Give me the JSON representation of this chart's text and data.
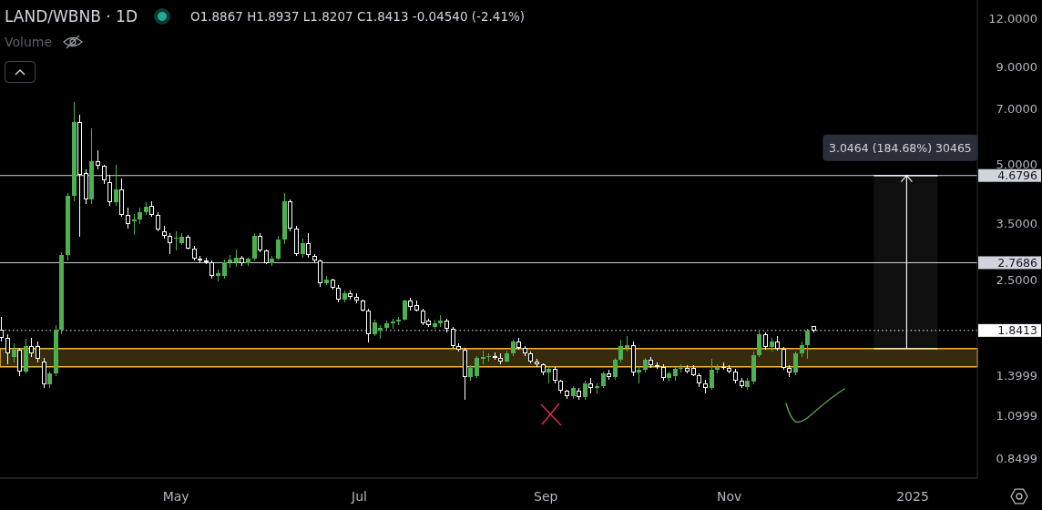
{
  "chart_data": {
    "type": "candlestick",
    "title": "LAND/WBNB · 1D",
    "annotations": [
      "O1.8867 H1.8937 L1.8207 C1.8413 -0.04540 (-2.41%)",
      "Volume",
      {
        "text": "3.0464 (184.68%) 30465",
        "x": "2024-12-30",
        "y": 4.6796
      }
    ],
    "x": [
      "2024-03-04",
      "2024-03-06",
      "2024-03-08",
      "2024-03-10",
      "2024-03-12",
      "2024-03-14",
      "2024-03-16",
      "2024-03-18",
      "2024-03-20",
      "2024-03-22",
      "2024-03-24",
      "2024-03-26",
      "2024-03-28",
      "2024-03-30",
      "2024-04-01",
      "2024-04-03",
      "2024-04-05",
      "2024-04-07",
      "2024-04-09",
      "2024-04-11",
      "2024-04-13",
      "2024-04-15",
      "2024-04-17",
      "2024-04-19",
      "2024-04-21",
      "2024-04-23",
      "2024-04-25",
      "2024-04-27",
      "2024-04-29",
      "2024-05-01",
      "2024-05-03",
      "2024-05-05",
      "2024-05-07",
      "2024-05-09",
      "2024-05-11",
      "2024-05-13",
      "2024-05-15",
      "2024-05-17",
      "2024-05-19",
      "2024-05-21",
      "2024-05-23",
      "2024-05-25",
      "2024-05-27",
      "2024-05-29",
      "2024-05-31",
      "2024-06-02",
      "2024-06-04",
      "2024-06-06",
      "2024-06-08",
      "2024-06-10",
      "2024-06-12",
      "2024-06-14",
      "2024-06-16",
      "2024-06-18",
      "2024-06-20",
      "2024-06-22",
      "2024-06-24",
      "2024-06-26",
      "2024-06-28",
      "2024-06-30",
      "2024-07-02",
      "2024-07-04",
      "2024-07-06",
      "2024-07-08",
      "2024-07-10",
      "2024-07-12",
      "2024-07-14",
      "2024-07-16",
      "2024-07-18",
      "2024-07-20",
      "2024-07-22",
      "2024-07-24",
      "2024-07-26",
      "2024-07-28",
      "2024-07-30",
      "2024-08-01",
      "2024-08-03",
      "2024-08-05",
      "2024-08-07",
      "2024-08-09",
      "2024-08-11",
      "2024-08-13",
      "2024-08-15",
      "2024-08-17",
      "2024-08-19",
      "2024-08-21",
      "2024-08-23",
      "2024-08-25",
      "2024-08-27",
      "2024-08-29",
      "2024-08-31",
      "2024-09-02",
      "2024-09-04",
      "2024-09-06",
      "2024-09-08",
      "2024-09-10",
      "2024-09-12",
      "2024-09-14",
      "2024-09-16",
      "2024-09-18",
      "2024-09-20",
      "2024-09-22",
      "2024-09-24",
      "2024-09-26",
      "2024-09-28",
      "2024-09-30",
      "2024-10-02",
      "2024-10-04",
      "2024-10-06",
      "2024-10-08",
      "2024-10-10",
      "2024-10-12",
      "2024-10-14",
      "2024-10-16",
      "2024-10-18",
      "2024-10-20",
      "2024-10-22",
      "2024-10-24",
      "2024-10-26",
      "2024-10-28",
      "2024-10-30",
      "2024-11-01",
      "2024-11-03",
      "2024-11-05",
      "2024-11-07",
      "2024-11-09",
      "2024-11-11",
      "2024-11-13",
      "2024-11-15",
      "2024-11-17",
      "2024-11-19",
      "2024-11-21",
      "2024-11-23",
      "2024-11-25",
      "2024-11-27",
      "2024-11-29"
    ],
    "ohlc": [
      [
        1.85,
        2.0,
        1.72,
        1.76
      ],
      [
        1.76,
        1.8,
        1.5,
        1.6
      ],
      [
        1.57,
        1.7,
        1.52,
        1.64
      ],
      [
        1.64,
        1.66,
        1.4,
        1.44
      ],
      [
        1.44,
        1.75,
        1.42,
        1.68
      ],
      [
        1.68,
        1.76,
        1.57,
        1.6
      ],
      [
        1.68,
        1.72,
        1.52,
        1.55
      ],
      [
        1.53,
        1.56,
        1.3,
        1.33
      ],
      [
        1.33,
        1.44,
        1.3,
        1.42
      ],
      [
        1.42,
        1.9,
        1.4,
        1.85
      ],
      [
        1.85,
        2.95,
        1.8,
        2.9
      ],
      [
        2.9,
        4.2,
        2.8,
        4.14
      ],
      [
        4.14,
        7.3,
        4.0,
        6.45
      ],
      [
        6.45,
        6.75,
        3.24,
        4.7
      ],
      [
        4.75,
        4.85,
        3.95,
        4.05
      ],
      [
        4.05,
        6.2,
        3.95,
        5.1
      ],
      [
        5.1,
        5.45,
        4.85,
        4.95
      ],
      [
        4.95,
        5.0,
        4.45,
        4.55
      ],
      [
        4.5,
        4.7,
        3.9,
        3.98
      ],
      [
        3.98,
        5.0,
        3.9,
        4.3
      ],
      [
        4.3,
        4.6,
        3.65,
        3.7
      ],
      [
        3.7,
        3.85,
        3.4,
        3.5
      ],
      [
        3.55,
        3.72,
        3.28,
        3.6
      ],
      [
        3.6,
        3.85,
        3.5,
        3.75
      ],
      [
        3.75,
        3.98,
        3.7,
        3.88
      ],
      [
        3.9,
        4.0,
        3.66,
        3.7
      ],
      [
        3.7,
        3.75,
        3.35,
        3.38
      ],
      [
        3.35,
        3.45,
        3.2,
        3.25
      ],
      [
        3.25,
        3.3,
        2.92,
        3.12
      ],
      [
        3.2,
        3.35,
        2.98,
        3.22
      ],
      [
        3.12,
        3.3,
        3.08,
        3.24
      ],
      [
        3.24,
        3.28,
        3.0,
        3.02
      ],
      [
        3.02,
        3.06,
        2.8,
        2.84
      ],
      [
        2.84,
        2.88,
        2.76,
        2.8
      ],
      [
        2.8,
        2.85,
        2.75,
        2.78
      ],
      [
        2.78,
        2.8,
        2.52,
        2.55
      ],
      [
        2.55,
        2.65,
        2.48,
        2.6
      ],
      [
        2.56,
        2.82,
        2.52,
        2.78
      ],
      [
        2.78,
        2.9,
        2.68,
        2.82
      ],
      [
        2.78,
        3.0,
        2.7,
        2.85
      ],
      [
        2.85,
        2.88,
        2.72,
        2.76
      ],
      [
        2.76,
        2.86,
        2.72,
        2.84
      ],
      [
        2.84,
        3.3,
        2.8,
        3.25
      ],
      [
        3.25,
        3.3,
        2.95,
        2.98
      ],
      [
        2.98,
        3.0,
        2.74,
        2.76
      ],
      [
        2.76,
        2.88,
        2.72,
        2.84
      ],
      [
        2.84,
        3.25,
        2.8,
        3.18
      ],
      [
        3.18,
        4.2,
        3.1,
        4.0
      ],
      [
        4.0,
        4.05,
        3.35,
        3.4
      ],
      [
        3.4,
        3.45,
        2.88,
        2.92
      ],
      [
        2.92,
        3.2,
        2.85,
        3.12
      ],
      [
        3.12,
        3.3,
        2.85,
        2.9
      ],
      [
        2.88,
        2.92,
        2.76,
        2.8
      ],
      [
        2.8,
        2.82,
        2.4,
        2.45
      ],
      [
        2.45,
        2.55,
        2.42,
        2.5
      ],
      [
        2.5,
        2.52,
        2.36,
        2.38
      ],
      [
        2.38,
        2.42,
        2.18,
        2.22
      ],
      [
        2.22,
        2.34,
        2.18,
        2.3
      ],
      [
        2.3,
        2.34,
        2.22,
        2.25
      ],
      [
        2.25,
        2.3,
        2.17,
        2.2
      ],
      [
        2.2,
        2.22,
        2.06,
        2.08
      ],
      [
        2.08,
        2.1,
        1.71,
        1.8
      ],
      [
        1.8,
        1.96,
        1.78,
        1.93
      ],
      [
        1.84,
        1.9,
        1.75,
        1.87
      ],
      [
        1.87,
        1.95,
        1.85,
        1.92
      ],
      [
        1.92,
        1.98,
        1.86,
        1.94
      ],
      [
        1.94,
        2.0,
        1.9,
        1.97
      ],
      [
        1.97,
        2.22,
        1.95,
        2.2
      ],
      [
        2.2,
        2.24,
        2.08,
        2.12
      ],
      [
        2.15,
        2.2,
        2.06,
        2.08
      ],
      [
        2.08,
        2.1,
        1.9,
        1.92
      ],
      [
        1.95,
        1.98,
        1.88,
        1.9
      ],
      [
        1.88,
        1.96,
        1.86,
        1.92
      ],
      [
        1.92,
        2.02,
        1.88,
        1.95
      ],
      [
        1.95,
        1.98,
        1.82,
        1.86
      ],
      [
        1.86,
        1.88,
        1.66,
        1.68
      ],
      [
        1.68,
        1.7,
        1.62,
        1.64
      ],
      [
        1.64,
        1.66,
        1.21,
        1.39
      ],
      [
        1.39,
        1.49,
        1.36,
        1.47
      ],
      [
        1.4,
        1.58,
        1.38,
        1.56
      ],
      [
        1.55,
        1.63,
        1.5,
        1.57
      ],
      [
        1.57,
        1.6,
        1.53,
        1.58
      ],
      [
        1.58,
        1.61,
        1.54,
        1.56
      ],
      [
        1.56,
        1.6,
        1.5,
        1.53
      ],
      [
        1.53,
        1.63,
        1.52,
        1.6
      ],
      [
        1.6,
        1.74,
        1.58,
        1.72
      ],
      [
        1.72,
        1.76,
        1.64,
        1.66
      ],
      [
        1.66,
        1.68,
        1.58,
        1.6
      ],
      [
        1.6,
        1.62,
        1.51,
        1.53
      ],
      [
        1.53,
        1.55,
        1.48,
        1.5
      ],
      [
        1.5,
        1.51,
        1.41,
        1.43
      ],
      [
        1.43,
        1.48,
        1.34,
        1.46
      ],
      [
        1.46,
        1.48,
        1.34,
        1.36
      ],
      [
        1.36,
        1.37,
        1.26,
        1.28
      ],
      [
        1.28,
        1.29,
        1.22,
        1.24
      ],
      [
        1.24,
        1.32,
        1.22,
        1.3
      ],
      [
        1.28,
        1.3,
        1.21,
        1.23
      ],
      [
        1.23,
        1.36,
        1.21,
        1.34
      ],
      [
        1.34,
        1.38,
        1.26,
        1.3
      ],
      [
        1.3,
        1.34,
        1.26,
        1.32
      ],
      [
        1.32,
        1.44,
        1.3,
        1.42
      ],
      [
        1.42,
        1.45,
        1.37,
        1.39
      ],
      [
        1.39,
        1.56,
        1.37,
        1.54
      ],
      [
        1.54,
        1.74,
        1.52,
        1.68
      ],
      [
        1.66,
        1.78,
        1.62,
        1.69
      ],
      [
        1.69,
        1.72,
        1.4,
        1.43
      ],
      [
        1.43,
        1.48,
        1.34,
        1.45
      ],
      [
        1.45,
        1.56,
        1.43,
        1.54
      ],
      [
        1.54,
        1.57,
        1.47,
        1.49
      ],
      [
        1.49,
        1.52,
        1.46,
        1.48
      ],
      [
        1.48,
        1.5,
        1.36,
        1.38
      ],
      [
        1.38,
        1.44,
        1.35,
        1.42
      ],
      [
        1.4,
        1.48,
        1.36,
        1.46
      ],
      [
        1.46,
        1.5,
        1.43,
        1.47
      ],
      [
        1.47,
        1.49,
        1.42,
        1.44
      ],
      [
        1.47,
        1.49,
        1.4,
        1.41
      ],
      [
        1.41,
        1.42,
        1.31,
        1.34
      ],
      [
        1.34,
        1.37,
        1.26,
        1.3
      ],
      [
        1.3,
        1.55,
        1.29,
        1.45
      ],
      [
        1.45,
        1.5,
        1.42,
        1.48
      ],
      [
        1.48,
        1.52,
        1.45,
        1.47
      ],
      [
        1.47,
        1.49,
        1.42,
        1.44
      ],
      [
        1.44,
        1.46,
        1.34,
        1.36
      ],
      [
        1.36,
        1.38,
        1.3,
        1.32
      ],
      [
        1.31,
        1.38,
        1.29,
        1.36
      ],
      [
        1.35,
        1.62,
        1.33,
        1.59
      ],
      [
        1.59,
        1.84,
        1.57,
        1.8
      ],
      [
        1.8,
        1.82,
        1.64,
        1.67
      ],
      [
        1.67,
        1.76,
        1.62,
        1.72
      ],
      [
        1.72,
        1.78,
        1.63,
        1.65
      ],
      [
        1.65,
        1.67,
        1.45,
        1.47
      ],
      [
        1.47,
        1.49,
        1.39,
        1.43
      ],
      [
        1.43,
        1.62,
        1.41,
        1.6
      ],
      [
        1.6,
        1.72,
        1.57,
        1.69
      ],
      [
        1.69,
        1.86,
        1.55,
        1.84
      ],
      [
        1.8867,
        1.8937,
        1.8207,
        1.8413
      ]
    ],
    "colors": [
      "#ffffff",
      "#ffffff",
      "#4caf50",
      "#ffffff",
      "#4caf50",
      "#ffffff",
      "#ffffff",
      "#ffffff",
      "#4caf50",
      "#4caf50",
      "#4caf50",
      "#4caf50",
      "#4caf50",
      "#ffffff",
      "#ffffff",
      "#4caf50",
      "#ffffff",
      "#ffffff",
      "#ffffff",
      "#4caf50",
      "#ffffff",
      "#ffffff",
      "#4caf50",
      "#4caf50",
      "#4caf50",
      "#ffffff",
      "#ffffff",
      "#ffffff",
      "#ffffff",
      "#4caf50",
      "#4caf50",
      "#ffffff",
      "#ffffff",
      "#ffffff",
      "#ffffff",
      "#ffffff",
      "#4caf50",
      "#4caf50",
      "#4caf50",
      "#4caf50",
      "#ffffff",
      "#4caf50",
      "#4caf50",
      "#ffffff",
      "#ffffff",
      "#4caf50",
      "#4caf50",
      "#4caf50",
      "#ffffff",
      "#ffffff",
      "#4caf50",
      "#ffffff",
      "#ffffff",
      "#ffffff",
      "#4caf50",
      "#ffffff",
      "#ffffff",
      "#4caf50",
      "#ffffff",
      "#ffffff",
      "#ffffff",
      "#ffffff",
      "#4caf50",
      "#4caf50",
      "#4caf50",
      "#4caf50",
      "#4caf50",
      "#4caf50",
      "#ffffff",
      "#ffffff",
      "#ffffff",
      "#ffffff",
      "#4caf50",
      "#4caf50",
      "#ffffff",
      "#ffffff",
      "#ffffff",
      "#ffffff",
      "#4caf50",
      "#4caf50",
      "#4caf50",
      "#4caf50",
      "#ffffff",
      "#ffffff",
      "#4caf50",
      "#4caf50",
      "#ffffff",
      "#ffffff",
      "#ffffff",
      "#ffffff",
      "#ffffff",
      "#4caf50",
      "#ffffff",
      "#ffffff",
      "#ffffff",
      "#4caf50",
      "#ffffff",
      "#4caf50",
      "#ffffff",
      "#4caf50",
      "#4caf50",
      "#ffffff",
      "#4caf50",
      "#4caf50",
      "#4caf50",
      "#ffffff",
      "#4caf50",
      "#4caf50",
      "#ffffff",
      "#ffffff",
      "#ffffff",
      "#4caf50",
      "#4caf50",
      "#4caf50",
      "#ffffff",
      "#ffffff",
      "#ffffff",
      "#ffffff",
      "#4caf50",
      "#4caf50",
      "#ffffff",
      "#ffffff",
      "#ffffff",
      "#ffffff",
      "#4caf50",
      "#4caf50",
      "#4caf50",
      "#ffffff",
      "#4caf50",
      "#ffffff",
      "#ffffff",
      "#ffffff",
      "#4caf50",
      "#4caf50",
      "#4caf50",
      "#ffffff"
    ],
    "xlim": [
      "2024-03-03T12:00",
      "2025-01-22T12:00"
    ],
    "xticks": [
      {
        "value": "2024-05-01",
        "label": "May"
      },
      {
        "value": "2024-07-01",
        "label": "Jul"
      },
      {
        "value": "2024-09-01",
        "label": "Sep"
      },
      {
        "value": "2024-11-01",
        "label": "Nov"
      },
      {
        "value": "2025-01-01",
        "label": "2025"
      }
    ],
    "ylim": [
      0.757,
      13.46
    ],
    "yticks": [
      {
        "value": 12,
        "label": "12.0000"
      },
      {
        "value": 9,
        "label": "9.0000"
      },
      {
        "value": 7,
        "label": "7.0000"
      },
      {
        "value": 5,
        "label": "5.0000"
      },
      {
        "value": 3.5,
        "label": "3.5000"
      },
      {
        "value": 2.5,
        "label": "2.5000"
      },
      1.3999,
      1.0999,
      0.8499
    ],
    "log": true,
    "ref_lines": [
      {
        "axis": "y",
        "value": 4.6796,
        "label": "4.6796",
        "color": "#d1d4dc"
      },
      {
        "axis": "y",
        "value": 2.7686,
        "label": "2.7686",
        "color": "#d1d4dc"
      },
      {
        "axis": "y",
        "value": 1.8413,
        "label": "1.8413",
        "color": "#ffffff",
        "line_style": "dotted"
      }
    ],
    "bands": [
      {
        "axis": "y",
        "from": 1.48,
        "to": 1.65,
        "color": "#f0b43c"
      }
    ]
  }
}
